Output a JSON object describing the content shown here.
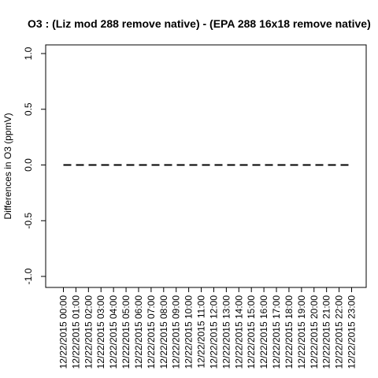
{
  "chart_data": {
    "type": "line",
    "title": "O3 : (Liz mod 288 remove native) - (EPA 288 16x18 remove native)",
    "xlabel": "",
    "ylabel": "Differences in O3 (ppmV)",
    "ylim": [
      -1.0,
      1.0
    ],
    "yticks": [
      "-1.0",
      "-0.5",
      "0.0",
      "0.5",
      "1.0"
    ],
    "ytick_values": [
      -1.0,
      -0.5,
      0.0,
      0.5,
      1.0
    ],
    "grid": false,
    "x": [
      "12/22/2015 00:00",
      "12/22/2015 01:00",
      "12/22/2015 02:00",
      "12/22/2015 03:00",
      "12/22/2015 04:00",
      "12/22/2015 05:00",
      "12/22/2015 06:00",
      "12/22/2015 07:00",
      "12/22/2015 08:00",
      "12/22/2015 09:00",
      "12/22/2015 10:00",
      "12/22/2015 11:00",
      "12/22/2015 12:00",
      "12/22/2015 13:00",
      "12/22/2015 14:00",
      "12/22/2015 15:00",
      "12/22/2015 16:00",
      "12/22/2015 17:00",
      "12/22/2015 18:00",
      "12/22/2015 19:00",
      "12/22/2015 20:00",
      "12/22/2015 21:00",
      "12/22/2015 22:00",
      "12/22/2015 23:00"
    ],
    "series": [
      {
        "values": [
          0,
          0,
          0,
          0,
          0,
          0,
          0,
          0,
          0,
          0,
          0,
          0,
          0,
          0,
          0,
          0,
          0,
          0,
          0,
          0,
          0,
          0,
          0,
          0
        ],
        "color": "#000000",
        "style": "dashed"
      }
    ]
  }
}
